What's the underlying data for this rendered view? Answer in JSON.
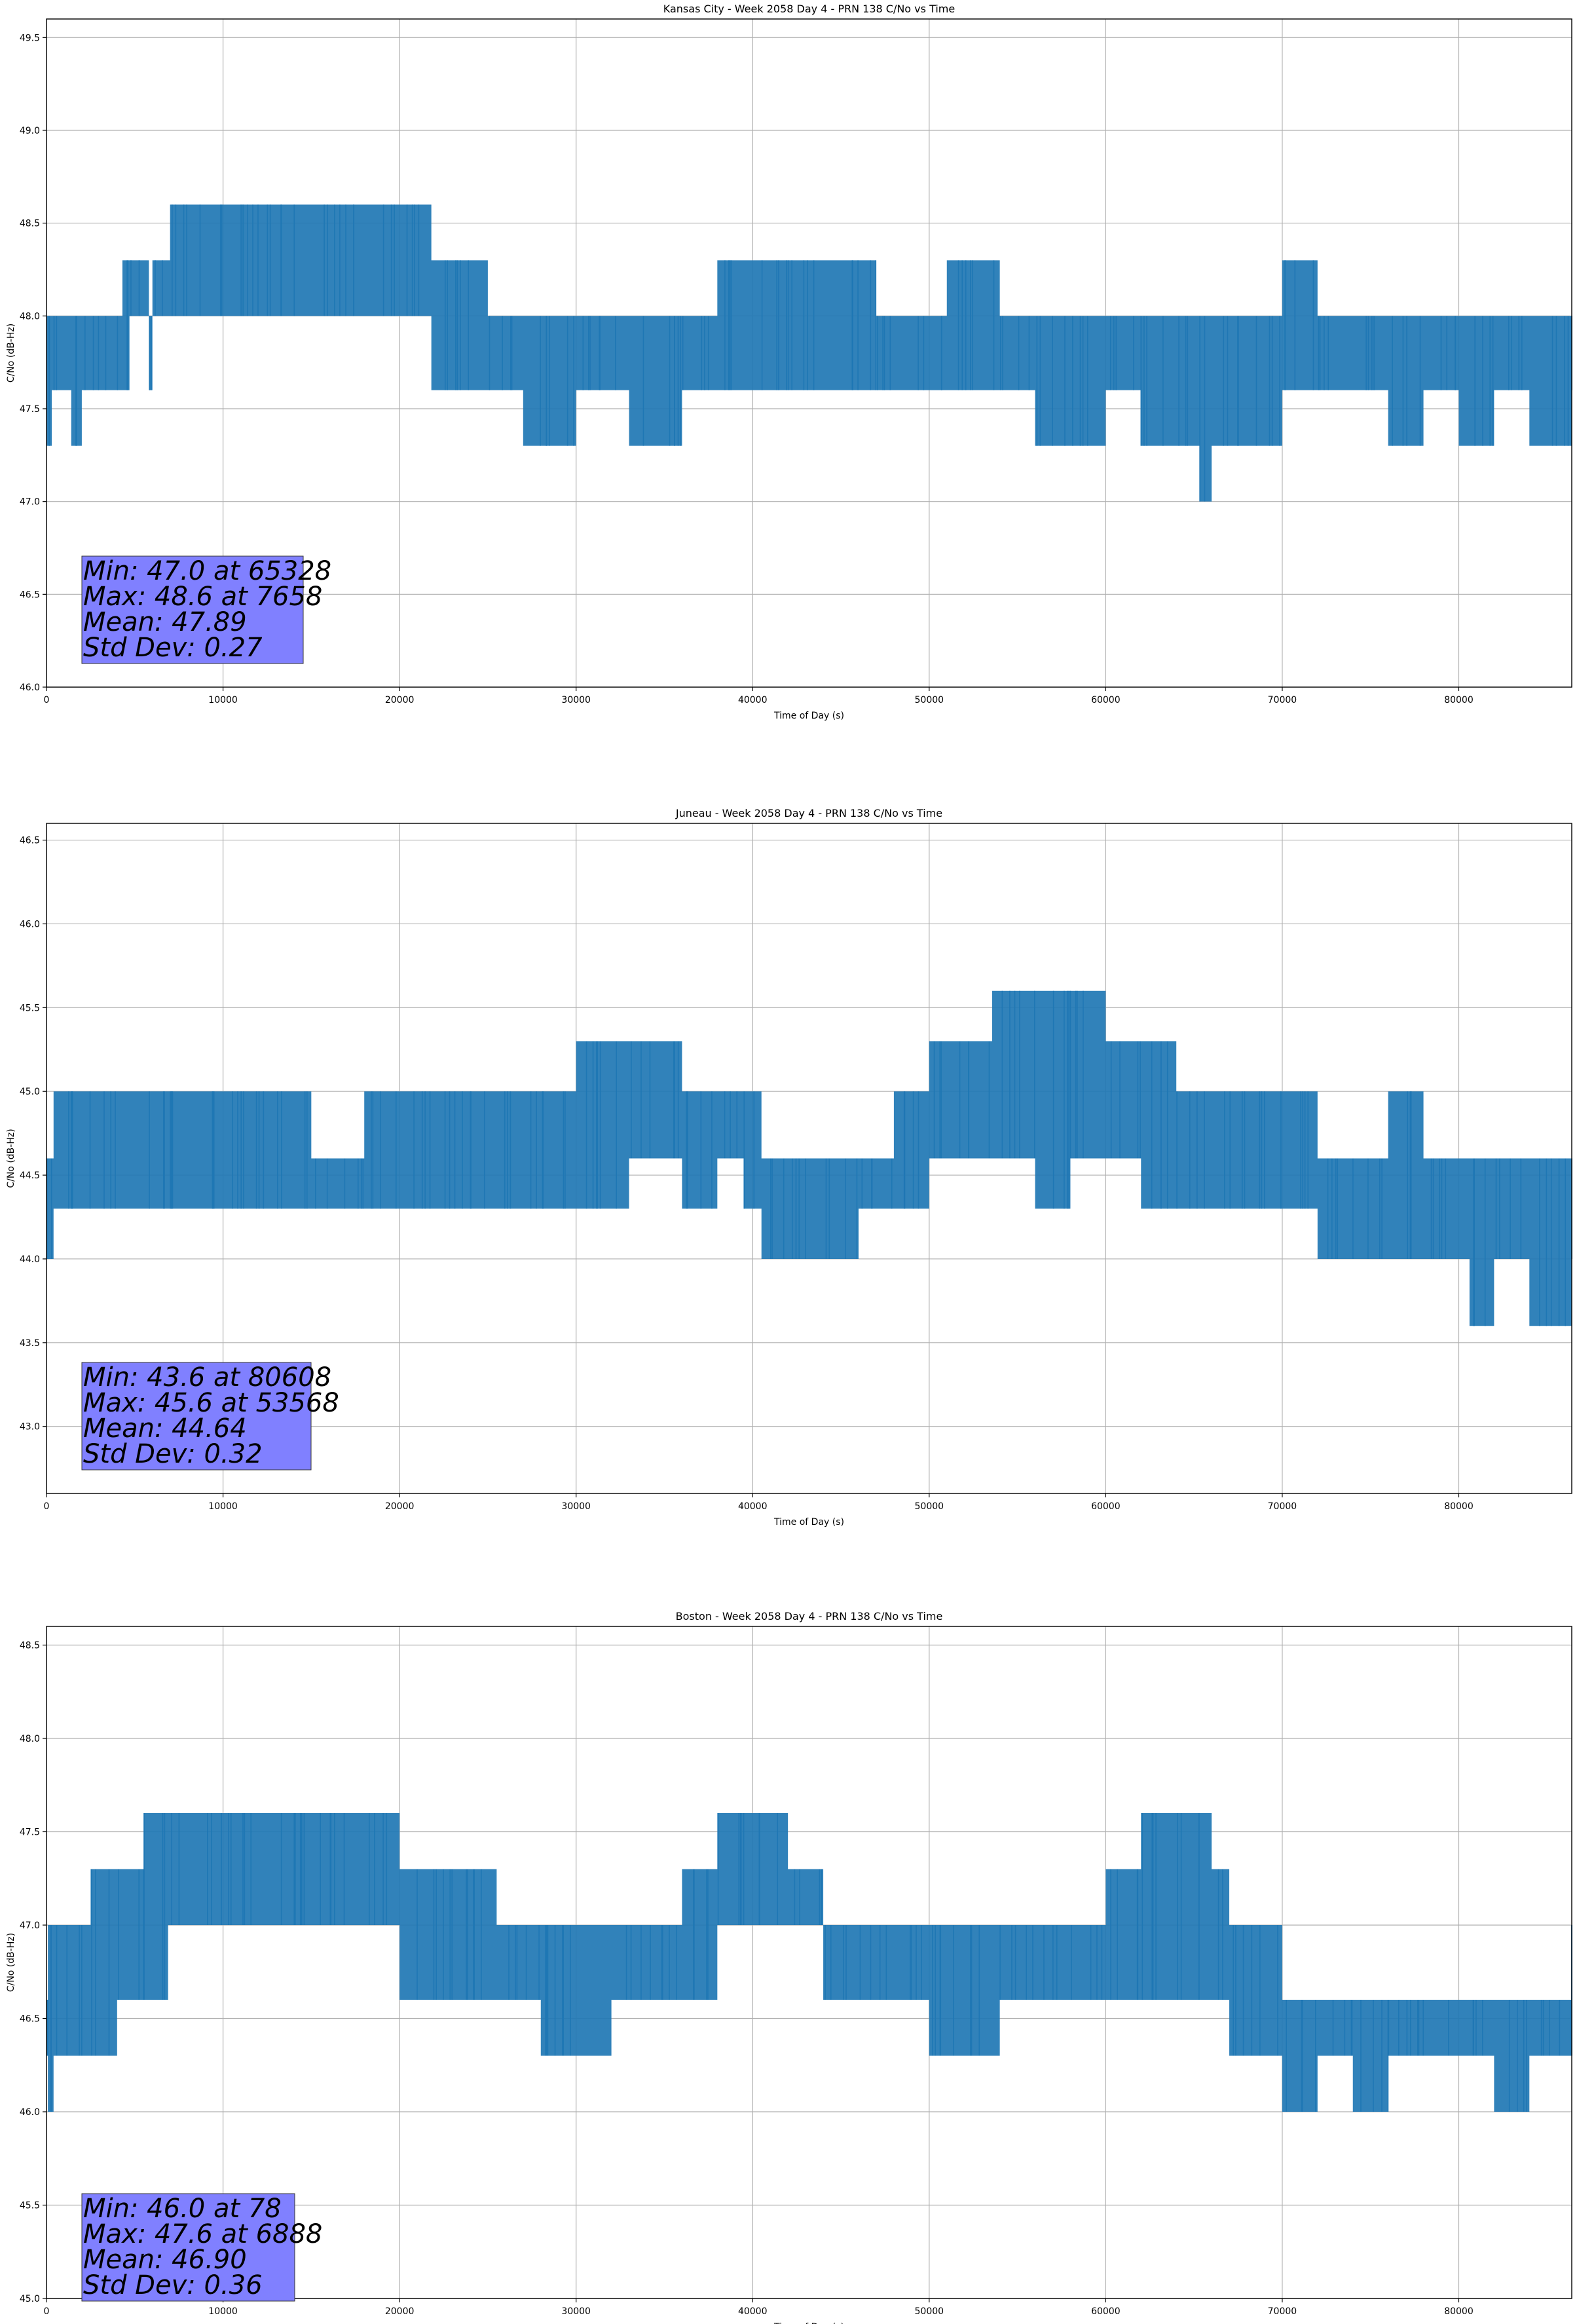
{
  "chart_data": [
    {
      "type": "line",
      "title": "Kansas City - Week 2058 Day 4 - PRN 138 C/No vs Time",
      "xlabel": "Time of Day (s)",
      "ylabel": "C/No (dB-Hz)",
      "xlim": [
        0,
        86400
      ],
      "ylim": [
        46.0,
        49.6
      ],
      "xticks": [
        0,
        10000,
        20000,
        30000,
        40000,
        50000,
        60000,
        70000,
        80000
      ],
      "yticks": [
        46.0,
        46.5,
        47.0,
        47.5,
        48.0,
        48.5,
        49.0,
        49.5
      ],
      "grid": true,
      "series": [
        {
          "color": "#1f77b4",
          "x": [
            0,
            300,
            1400,
            2000,
            4300,
            4700,
            5800,
            6000,
            7000,
            7658,
            10000,
            16000,
            20000,
            21800,
            23000,
            25000,
            27000,
            30000,
            33000,
            36000,
            38000,
            40000,
            42000,
            44500,
            47000,
            50000,
            51000,
            52000,
            54000,
            56000,
            58000,
            60000,
            62000,
            64000,
            65328,
            66000,
            68000,
            70000,
            72000,
            74000,
            76000,
            78000,
            80000,
            82000,
            84000,
            86400
          ],
          "band_low": [
            47.3,
            47.6,
            47.3,
            47.6,
            47.6,
            48.0,
            47.6,
            48.0,
            48.0,
            48.0,
            48.0,
            48.0,
            48.0,
            47.6,
            47.6,
            47.6,
            47.3,
            47.6,
            47.3,
            47.6,
            47.6,
            47.6,
            47.6,
            47.6,
            47.6,
            47.6,
            47.6,
            47.6,
            47.6,
            47.3,
            47.3,
            47.6,
            47.3,
            47.3,
            47.0,
            47.3,
            47.3,
            47.6,
            47.6,
            47.6,
            47.3,
            47.6,
            47.3,
            47.6,
            47.3,
            47.6
          ],
          "band_high": [
            48.0,
            48.0,
            48.0,
            48.0,
            48.3,
            48.3,
            48.0,
            48.3,
            48.6,
            48.6,
            48.6,
            48.6,
            48.6,
            48.3,
            48.3,
            48.0,
            48.0,
            48.0,
            48.0,
            48.0,
            48.3,
            48.3,
            48.3,
            48.3,
            48.0,
            48.0,
            48.3,
            48.3,
            48.0,
            48.0,
            48.0,
            48.0,
            48.0,
            48.0,
            48.0,
            48.0,
            48.0,
            48.3,
            48.0,
            48.0,
            48.0,
            48.0,
            48.0,
            48.0,
            48.0,
            48.0
          ]
        }
      ],
      "stats": [
        "Min: 47.0 at 65328",
        "Max: 48.6 at 7658",
        "Mean: 47.89",
        "Std Dev: 0.27"
      ]
    },
    {
      "type": "line",
      "title": "Juneau - Week 2058 Day 4 - PRN 138 C/No vs Time",
      "xlabel": "Time of Day (s)",
      "ylabel": "C/No (dB-Hz)",
      "xlim": [
        0,
        86400
      ],
      "ylim": [
        42.6,
        46.6
      ],
      "xticks": [
        0,
        10000,
        20000,
        30000,
        40000,
        50000,
        60000,
        70000,
        80000
      ],
      "yticks": [
        43.0,
        43.5,
        44.0,
        44.5,
        45.0,
        45.5,
        46.0,
        46.5
      ],
      "grid": true,
      "series": [
        {
          "color": "#1f77b4",
          "x": [
            0,
            400,
            3000,
            8000,
            12000,
            15000,
            18000,
            22000,
            26000,
            30000,
            33000,
            36000,
            38000,
            39500,
            40500,
            42000,
            44000,
            46000,
            48000,
            50000,
            52000,
            53568,
            56000,
            58000,
            60000,
            62000,
            64000,
            66000,
            68000,
            70000,
            72000,
            74000,
            76000,
            78000,
            80608,
            82000,
            84000,
            86400
          ],
          "band_low": [
            44.0,
            44.3,
            44.3,
            44.3,
            44.3,
            44.3,
            44.3,
            44.3,
            44.3,
            44.3,
            44.6,
            44.3,
            44.6,
            44.3,
            44.0,
            44.0,
            44.0,
            44.3,
            44.3,
            44.6,
            44.6,
            44.6,
            44.3,
            44.6,
            44.6,
            44.3,
            44.3,
            44.3,
            44.3,
            44.3,
            44.0,
            44.0,
            44.0,
            44.0,
            43.6,
            44.0,
            43.6,
            44.0
          ],
          "band_high": [
            44.6,
            45.0,
            45.0,
            45.0,
            45.0,
            44.6,
            45.0,
            45.0,
            45.0,
            45.3,
            45.3,
            45.0,
            45.0,
            45.0,
            44.6,
            44.6,
            44.6,
            44.6,
            45.0,
            45.3,
            45.3,
            45.6,
            45.6,
            45.6,
            45.3,
            45.3,
            45.0,
            45.0,
            45.0,
            45.0,
            44.6,
            44.6,
            45.0,
            44.6,
            44.6,
            44.6,
            44.6,
            44.6
          ]
        }
      ],
      "stats": [
        "Min: 43.6 at 80608",
        "Max: 45.6 at 53568",
        "Mean: 44.64",
        "Std Dev: 0.32"
      ]
    },
    {
      "type": "line",
      "title": "Boston - Week 2058 Day 4 - PRN 138 C/No vs Time",
      "xlabel": "Time of Day (s)",
      "ylabel": "C/No (dB-Hz)",
      "xlim": [
        0,
        86400
      ],
      "ylim": [
        45.0,
        48.6
      ],
      "xticks": [
        0,
        10000,
        20000,
        30000,
        40000,
        50000,
        60000,
        70000,
        80000
      ],
      "yticks": [
        45.0,
        45.5,
        46.0,
        46.5,
        47.0,
        47.5,
        48.0,
        48.5
      ],
      "grid": true,
      "series": [
        {
          "color": "#1f77b4",
          "x": [
            0,
            78,
            400,
            2500,
            4000,
            5500,
            6888,
            8000,
            12000,
            16000,
            18500,
            20000,
            24000,
            25500,
            28000,
            32000,
            36000,
            38000,
            42000,
            44000,
            48000,
            50000,
            54000,
            58000,
            60000,
            62000,
            64000,
            66000,
            67000,
            70000,
            72000,
            74000,
            76000,
            80000,
            82000,
            84000,
            86400
          ],
          "band_low": [
            46.3,
            46.0,
            46.3,
            46.3,
            46.6,
            46.6,
            47.0,
            47.0,
            47.0,
            47.0,
            47.0,
            46.6,
            46.6,
            46.6,
            46.3,
            46.6,
            46.6,
            47.0,
            47.0,
            46.6,
            46.6,
            46.3,
            46.6,
            46.6,
            46.6,
            46.6,
            46.6,
            46.6,
            46.3,
            46.0,
            46.3,
            46.0,
            46.3,
            46.3,
            46.0,
            46.3,
            46.3
          ],
          "band_high": [
            46.6,
            47.0,
            47.0,
            47.3,
            47.3,
            47.6,
            47.6,
            47.6,
            47.6,
            47.6,
            47.6,
            47.3,
            47.3,
            47.0,
            47.0,
            47.0,
            47.3,
            47.6,
            47.3,
            47.0,
            47.0,
            47.0,
            47.0,
            47.0,
            47.3,
            47.6,
            47.6,
            47.3,
            47.0,
            46.6,
            46.6,
            46.6,
            46.6,
            46.6,
            46.6,
            46.6,
            47.0
          ]
        }
      ],
      "stats": [
        "Min: 46.0 at 78",
        "Max: 47.6 at 6888",
        "Mean: 46.90",
        "Std Dev: 0.36"
      ]
    }
  ]
}
